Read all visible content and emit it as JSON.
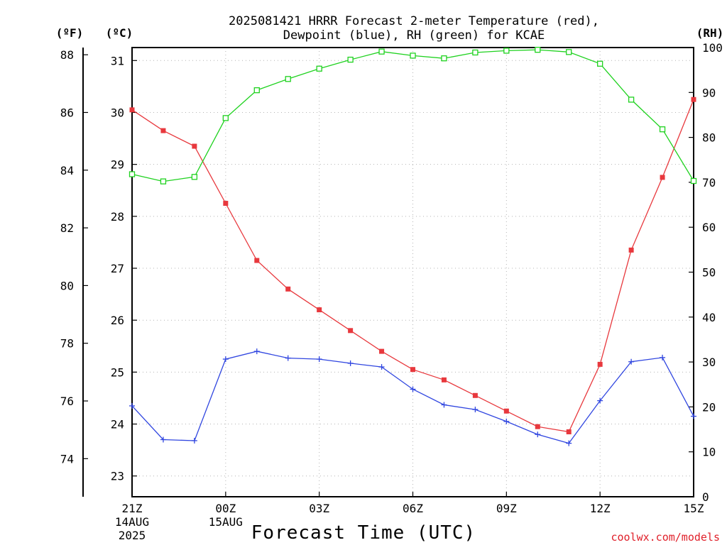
{
  "chart_data": {
    "type": "line",
    "title_line1": "2025081421 HRRR Forecast 2-meter Temperature (red),",
    "title_line2": "Dewpoint (blue), RH (green) for KCAE",
    "xlabel": "Forecast Time (UTC)",
    "credit": "coolwx.com/models",
    "axes": {
      "fahrenheit": {
        "unit_label": "(ºF)",
        "ticks": [
          74,
          76,
          78,
          80,
          82,
          84,
          86,
          88
        ]
      },
      "celsius": {
        "unit_label": "(ºC)",
        "ticks": [
          23,
          24,
          25,
          26,
          27,
          28,
          29,
          30,
          31
        ],
        "ylim": [
          22.6,
          31.25
        ]
      },
      "rh": {
        "unit_label": "(RH)",
        "ticks": [
          0,
          10,
          20,
          30,
          40,
          50,
          60,
          70,
          80,
          90,
          100
        ],
        "ylim": [
          0,
          100
        ]
      }
    },
    "x_range_hours": [
      0,
      18
    ],
    "x_ticks": [
      {
        "hour": 0,
        "label": "21Z",
        "sub1": "14AUG",
        "sub2": "2025"
      },
      {
        "hour": 3,
        "label": "00Z",
        "sub1": "15AUG",
        "sub2": ""
      },
      {
        "hour": 6,
        "label": "03Z",
        "sub1": "",
        "sub2": ""
      },
      {
        "hour": 9,
        "label": "06Z",
        "sub1": "",
        "sub2": ""
      },
      {
        "hour": 12,
        "label": "09Z",
        "sub1": "",
        "sub2": ""
      },
      {
        "hour": 15,
        "label": "12Z",
        "sub1": "",
        "sub2": ""
      },
      {
        "hour": 18,
        "label": "15Z",
        "sub1": "",
        "sub2": ""
      }
    ],
    "grid": true,
    "series": [
      {
        "key": "temperature",
        "color": "#e8383d",
        "axis": "celsius",
        "marker": "filled-square",
        "values": [
          30.05,
          29.65,
          29.35,
          28.25,
          27.15,
          26.6,
          26.2,
          25.8,
          25.4,
          25.05,
          24.85,
          24.55,
          24.25,
          23.95,
          23.85,
          25.15,
          27.35,
          28.75,
          30.25
        ]
      },
      {
        "key": "dewpoint",
        "color": "#3046e0",
        "axis": "celsius",
        "marker": "plus",
        "values": [
          24.35,
          23.7,
          23.68,
          25.25,
          25.4,
          25.27,
          25.25,
          25.17,
          25.1,
          24.67,
          24.37,
          24.28,
          24.05,
          23.8,
          23.63,
          24.45,
          25.2,
          25.28,
          24.15
        ]
      },
      {
        "key": "rh",
        "color": "#1fd21f",
        "axis": "rh",
        "marker": "open-square",
        "values": [
          71.8,
          70.2,
          71.2,
          84.3,
          90.5,
          93,
          95.3,
          97.3,
          99.1,
          98.2,
          97.6,
          98.9,
          99.3,
          99.5,
          99,
          96.4,
          88.4,
          81.8,
          70.3
        ]
      }
    ]
  }
}
